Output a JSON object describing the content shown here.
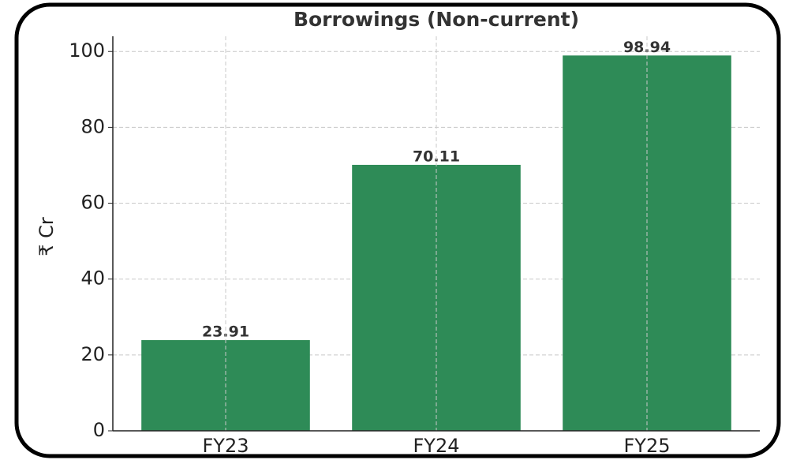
{
  "chart_data": {
    "type": "bar",
    "title": "Borrowings (Non-current)",
    "y_label": "₹ Cr",
    "categories": [
      "FY23",
      "FY24",
      "FY25"
    ],
    "values": [
      23.91,
      70.11,
      98.94
    ],
    "color": "#2e8b57",
    "ylim": [
      0,
      104
    ],
    "yticks": [
      0,
      20,
      40,
      60,
      80,
      100
    ],
    "grid": true
  }
}
